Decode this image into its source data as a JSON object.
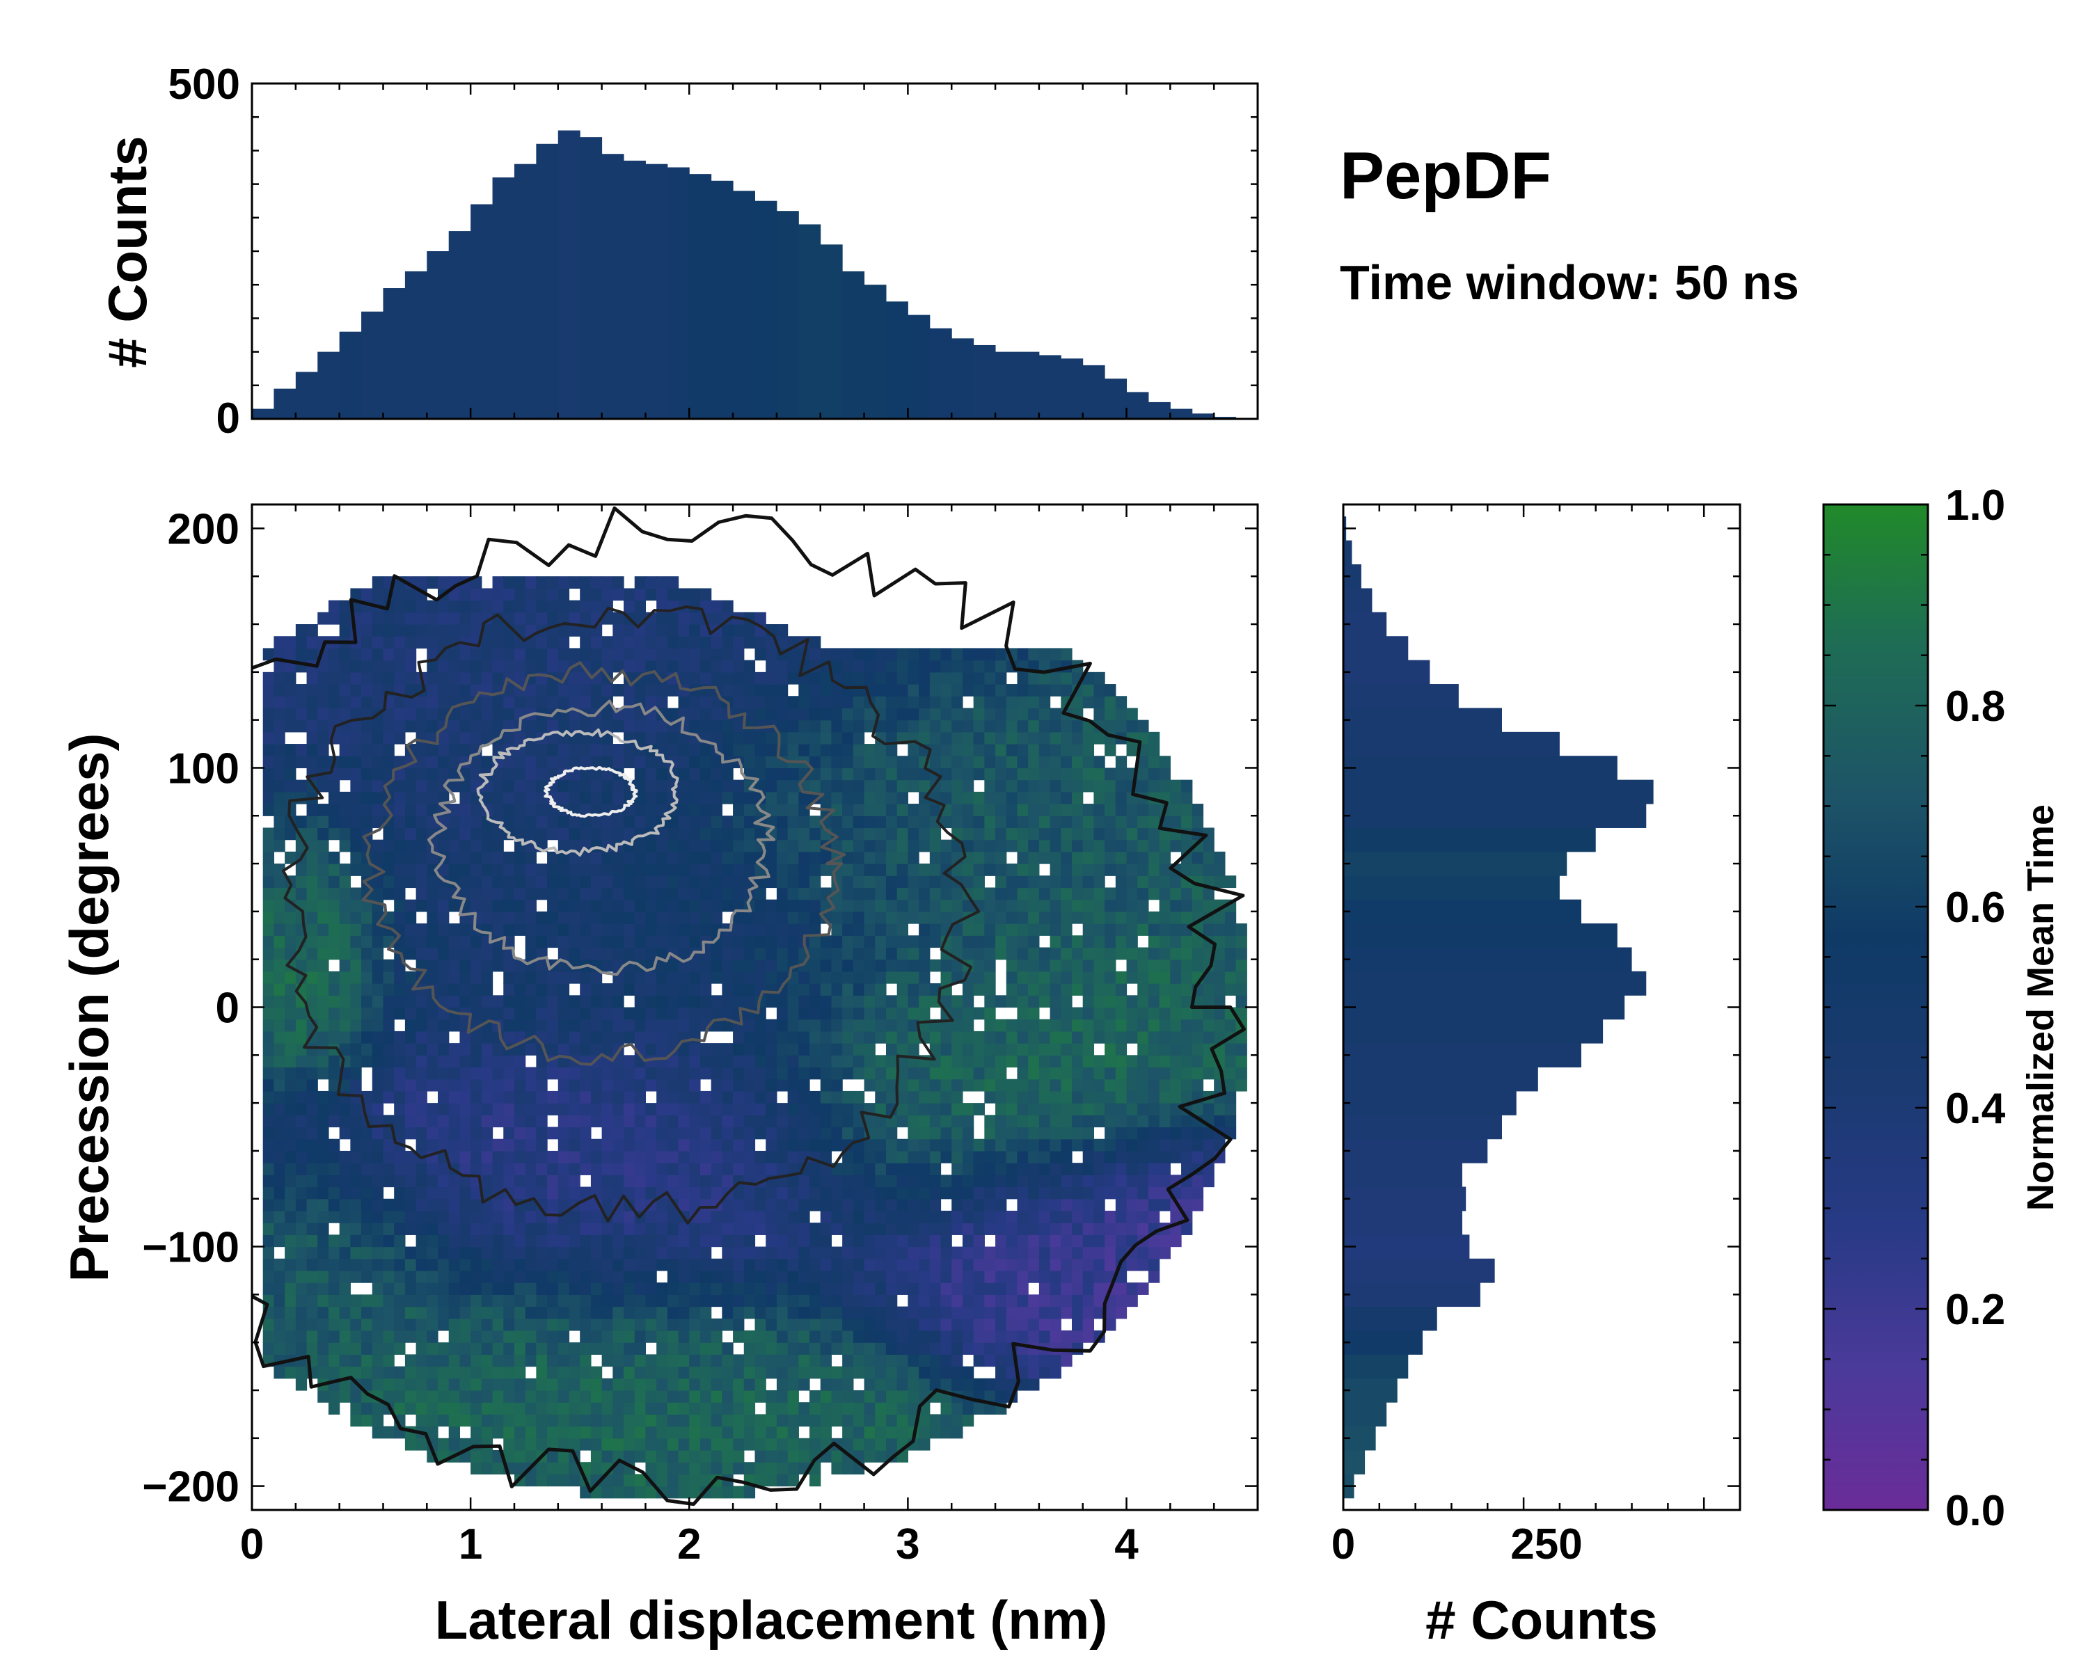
{
  "figure": {
    "title": "PepDF",
    "subtitle": "Time window: 50 ns"
  },
  "colors": {
    "cmap": [
      "#6a2c99",
      "#4b3a9a",
      "#283a86",
      "#1a3a70",
      "#0f3a66",
      "#1d5467",
      "#1e6c55",
      "#218a2a"
    ]
  },
  "chart_data": [
    {
      "id": "top_histogram",
      "type": "bar",
      "ylabel": "# Counts",
      "xlim": [
        0,
        4.6
      ],
      "ylim": [
        0,
        500
      ],
      "yticks": [
        0,
        500
      ],
      "x": [
        0.05,
        0.15,
        0.25,
        0.35,
        0.45,
        0.55,
        0.65,
        0.75,
        0.85,
        0.95,
        1.05,
        1.15,
        1.25,
        1.35,
        1.45,
        1.55,
        1.65,
        1.75,
        1.85,
        1.95,
        2.05,
        2.15,
        2.25,
        2.35,
        2.45,
        2.55,
        2.65,
        2.75,
        2.85,
        2.95,
        3.05,
        3.15,
        3.25,
        3.35,
        3.45,
        3.55,
        3.65,
        3.75,
        3.85,
        3.95,
        4.05,
        4.15,
        4.25,
        4.35,
        4.45
      ],
      "values": [
        15,
        45,
        70,
        100,
        130,
        160,
        195,
        220,
        250,
        280,
        320,
        360,
        380,
        410,
        430,
        420,
        395,
        385,
        380,
        375,
        365,
        355,
        340,
        325,
        310,
        290,
        260,
        220,
        200,
        175,
        155,
        135,
        120,
        110,
        100,
        100,
        95,
        90,
        80,
        60,
        40,
        25,
        15,
        8,
        3
      ],
      "colors": [
        0.5,
        0.5,
        0.48,
        0.5,
        0.52,
        0.5,
        0.48,
        0.5,
        0.5,
        0.5,
        0.47,
        0.47,
        0.47,
        0.48,
        0.46,
        0.47,
        0.48,
        0.48,
        0.5,
        0.52,
        0.54,
        0.55,
        0.55,
        0.56,
        0.58,
        0.6,
        0.6,
        0.58,
        0.58,
        0.56,
        0.54,
        0.52,
        0.52,
        0.5,
        0.5,
        0.5,
        0.5,
        0.5,
        0.5,
        0.5,
        0.5,
        0.5,
        0.5,
        0.5,
        0.5
      ]
    },
    {
      "id": "side_histogram",
      "type": "bar",
      "orientation": "horizontal",
      "xlabel": "# Counts",
      "xlim": [
        0,
        550
      ],
      "ylim": [
        -210,
        210
      ],
      "xticks": [
        0,
        250
      ],
      "x": [
        -200,
        -190,
        -180,
        -170,
        -160,
        -150,
        -140,
        -130,
        -120,
        -110,
        -100,
        -90,
        -80,
        -70,
        -60,
        -50,
        -40,
        -30,
        -20,
        -10,
        0,
        10,
        20,
        30,
        40,
        50,
        60,
        70,
        80,
        90,
        100,
        110,
        120,
        130,
        140,
        150,
        160,
        170,
        180,
        190,
        200
      ],
      "values": [
        15,
        30,
        45,
        60,
        75,
        90,
        110,
        130,
        190,
        210,
        175,
        165,
        170,
        165,
        200,
        220,
        240,
        270,
        330,
        360,
        390,
        420,
        400,
        380,
        330,
        300,
        310,
        350,
        420,
        430,
        380,
        300,
        220,
        160,
        120,
        90,
        60,
        40,
        25,
        12,
        4
      ],
      "colors": [
        0.68,
        0.7,
        0.68,
        0.66,
        0.66,
        0.62,
        0.55,
        0.48,
        0.4,
        0.38,
        0.36,
        0.38,
        0.38,
        0.4,
        0.4,
        0.42,
        0.44,
        0.45,
        0.46,
        0.47,
        0.48,
        0.5,
        0.52,
        0.54,
        0.56,
        0.6,
        0.62,
        0.58,
        0.5,
        0.48,
        0.47,
        0.46,
        0.45,
        0.42,
        0.4,
        0.4,
        0.4,
        0.42,
        0.44,
        0.46,
        0.48
      ]
    },
    {
      "id": "heatmap",
      "type": "heatmap",
      "xlabel": "Lateral displacement (nm)",
      "ylabel": "Precession (degrees)",
      "xlim": [
        0,
        4.6
      ],
      "ylim": [
        -210,
        210
      ],
      "xticks": [
        0,
        1,
        2,
        3,
        4
      ],
      "yticks": [
        -200,
        -100,
        0,
        100,
        200
      ],
      "ytick_labels": [
        "−200",
        "−100",
        "0",
        "100",
        "200"
      ],
      "density_regions": [
        {
          "cx": 1.5,
          "cy": 95,
          "rx": 1.0,
          "ry": 60,
          "value": 0.42
        },
        {
          "cx": 1.8,
          "cy": 30,
          "rx": 0.9,
          "ry": 45,
          "value": 0.5
        },
        {
          "cx": 0.3,
          "cy": 30,
          "rx": 0.25,
          "ry": 40,
          "value": 0.85
        },
        {
          "cx": 2.8,
          "cy": 80,
          "rx": 0.8,
          "ry": 45,
          "value": 0.75
        },
        {
          "cx": 3.2,
          "cy": -30,
          "rx": 0.6,
          "ry": 50,
          "value": 0.8
        },
        {
          "cx": 3.6,
          "cy": -100,
          "rx": 0.6,
          "ry": 30,
          "value": 0.2
        },
        {
          "cx": 1.6,
          "cy": -70,
          "rx": 0.9,
          "ry": 45,
          "value": 0.3
        },
        {
          "cx": 1.4,
          "cy": -160,
          "rx": 1.0,
          "ry": 45,
          "value": 0.8
        },
        {
          "cx": 0.4,
          "cy": -120,
          "rx": 0.4,
          "ry": 40,
          "value": 0.75
        },
        {
          "cx": 1.5,
          "cy": 150,
          "rx": 1.0,
          "ry": 30,
          "value": 0.4
        }
      ]
    },
    {
      "id": "colorbar",
      "type": "colorbar",
      "label": "Normalized Mean Time",
      "range": [
        0.0,
        1.0
      ],
      "ticks": [
        "0.0",
        "0.2",
        "0.4",
        "0.6",
        "0.8",
        "1.0"
      ]
    }
  ]
}
